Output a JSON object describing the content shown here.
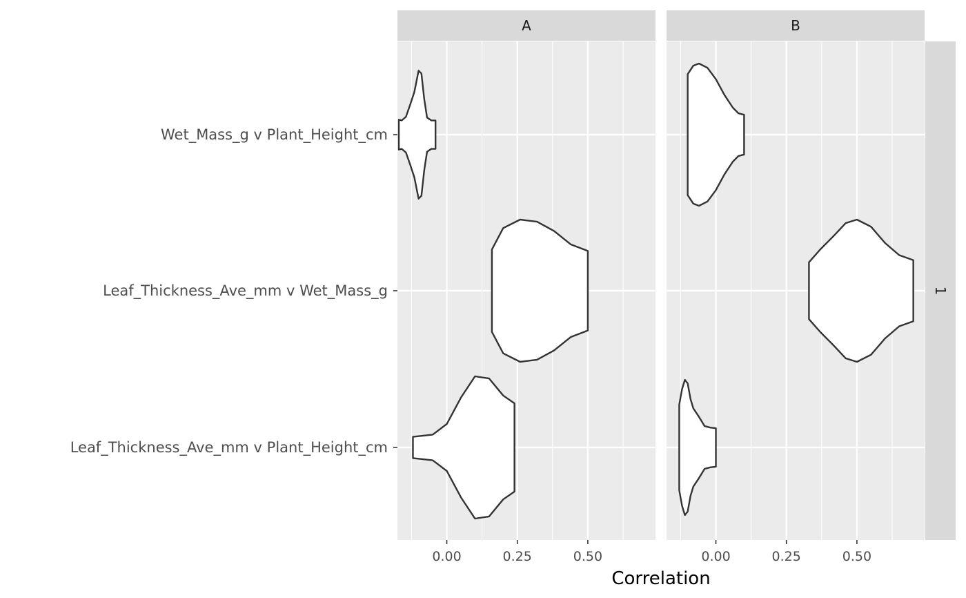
{
  "chart_data": {
    "type": "violin",
    "xlabel": "Correlation",
    "ylabel": "",
    "xlim": [
      -0.175,
      0.74
    ],
    "x_ticks": [
      0.0,
      0.25,
      0.5
    ],
    "x_tick_labels": [
      "0.00",
      "0.25",
      "0.50"
    ],
    "categories": [
      "Wet_Mass_g v Plant_Height_cm",
      "Leaf_Thickness_Ave_mm v Wet_Mass_g",
      "Leaf_Thickness_Ave_mm v Plant_Height_cm"
    ],
    "facet_columns": [
      "A",
      "B"
    ],
    "facet_rows": [
      "1"
    ],
    "grid": true,
    "legend": "none",
    "colors": {
      "panel_bg": "#EBEBEB",
      "strip_bg": "#D9D9D9",
      "grid": "#FFFFFF",
      "violin_fill": "#FFFFFF",
      "violin_stroke": "#333333"
    },
    "panels": [
      {
        "facet": "A",
        "violins": [
          {
            "category": "Wet_Mass_g v Plant_Height_cm",
            "min": -0.17,
            "max": -0.04,
            "profile": [
              [
                -0.17,
                0.21
              ],
              [
                -0.16,
                0.2
              ],
              [
                -0.145,
                0.25
              ],
              [
                -0.13,
                0.42
              ],
              [
                -0.115,
                0.6
              ],
              [
                -0.1,
                0.9
              ],
              [
                -0.09,
                0.86
              ],
              [
                -0.08,
                0.5
              ],
              [
                -0.07,
                0.24
              ],
              [
                -0.055,
                0.2
              ],
              [
                -0.04,
                0.2
              ]
            ]
          },
          {
            "category": "Leaf_Thickness_Ave_mm v Wet_Mass_g",
            "min": 0.16,
            "max": 0.5,
            "profile": [
              [
                0.16,
                0.58
              ],
              [
                0.2,
                0.88
              ],
              [
                0.26,
                1.0
              ],
              [
                0.32,
                0.97
              ],
              [
                0.38,
                0.84
              ],
              [
                0.44,
                0.65
              ],
              [
                0.5,
                0.56
              ]
            ]
          },
          {
            "category": "Leaf_Thickness_Ave_mm v Plant_Height_cm",
            "min": -0.12,
            "max": 0.24,
            "profile": [
              [
                -0.12,
                0.15
              ],
              [
                -0.05,
                0.18
              ],
              [
                0.0,
                0.33
              ],
              [
                0.05,
                0.7
              ],
              [
                0.1,
                1.0
              ],
              [
                0.15,
                0.97
              ],
              [
                0.2,
                0.73
              ],
              [
                0.24,
                0.62
              ]
            ]
          }
        ]
      },
      {
        "facet": "B",
        "violins": [
          {
            "category": "Wet_Mass_g v Plant_Height_cm",
            "min": -0.1,
            "max": 0.1,
            "profile": [
              [
                -0.1,
                0.85
              ],
              [
                -0.08,
                0.97
              ],
              [
                -0.06,
                1.0
              ],
              [
                -0.03,
                0.94
              ],
              [
                0.0,
                0.78
              ],
              [
                0.03,
                0.56
              ],
              [
                0.06,
                0.38
              ],
              [
                0.08,
                0.3
              ],
              [
                0.1,
                0.28
              ]
            ]
          },
          {
            "category": "Leaf_Thickness_Ave_mm v Wet_Mass_g",
            "min": 0.33,
            "max": 0.7,
            "profile": [
              [
                0.33,
                0.4
              ],
              [
                0.37,
                0.58
              ],
              [
                0.42,
                0.78
              ],
              [
                0.46,
                0.95
              ],
              [
                0.5,
                1.0
              ],
              [
                0.55,
                0.9
              ],
              [
                0.6,
                0.67
              ],
              [
                0.65,
                0.5
              ],
              [
                0.7,
                0.43
              ]
            ]
          },
          {
            "category": "Leaf_Thickness_Ave_mm v Plant_Height_cm",
            "min": -0.13,
            "max": 0.0,
            "profile": [
              [
                -0.13,
                0.6
              ],
              [
                -0.12,
                0.82
              ],
              [
                -0.11,
                0.95
              ],
              [
                -0.1,
                0.9
              ],
              [
                -0.09,
                0.68
              ],
              [
                -0.08,
                0.55
              ],
              [
                -0.06,
                0.43
              ],
              [
                -0.04,
                0.3
              ],
              [
                -0.02,
                0.28
              ],
              [
                0.0,
                0.27
              ]
            ]
          }
        ]
      }
    ]
  }
}
